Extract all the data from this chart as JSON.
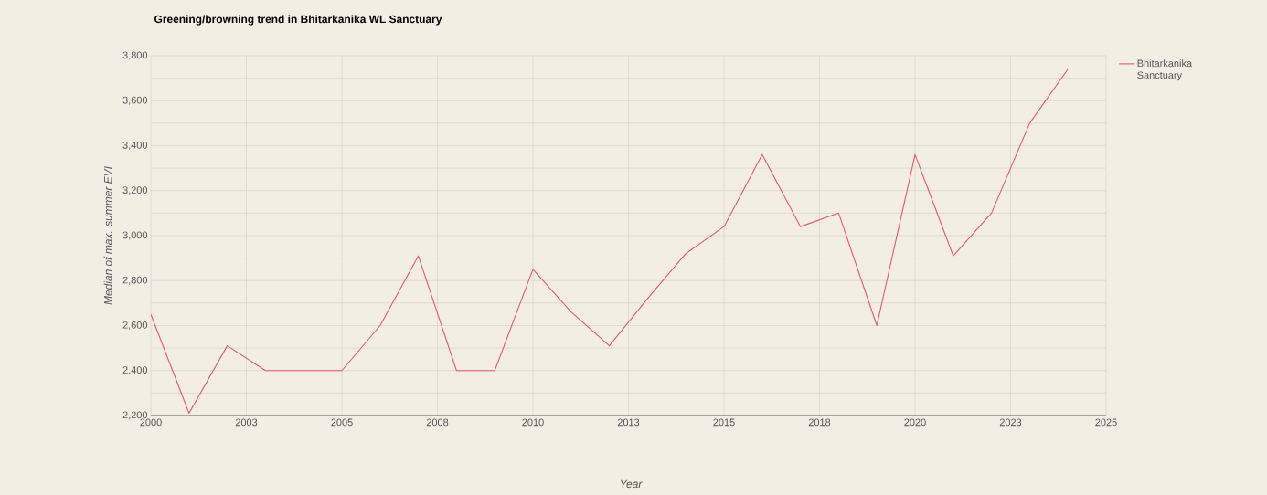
{
  "chart_data": {
    "type": "line",
    "title": "Greening/browning trend in Bhitarkanika WL Sanctuary",
    "xlabel": "Year",
    "ylabel": "Median of max. summer EVI",
    "x": [
      2000,
      2001,
      2002,
      2003,
      2004,
      2005,
      2006,
      2007,
      2008,
      2009,
      2010,
      2011,
      2012,
      2013,
      2014,
      2015,
      2016,
      2017,
      2018,
      2019,
      2020,
      2021,
      2022,
      2023,
      2024
    ],
    "series": [
      {
        "name": "Bhitarkanika Sanctuary",
        "color": "#e05a6e",
        "values": [
          2650,
          2210,
          2510,
          2400,
          2400,
          2400,
          2600,
          2910,
          2400,
          2400,
          2850,
          2660,
          2510,
          2720,
          2920,
          3040,
          3360,
          3040,
          3100,
          2600,
          3360,
          2910,
          3100,
          3500,
          3740
        ]
      }
    ],
    "xlim": [
      2000,
      2025
    ],
    "xticks": [
      2000,
      {
        "value": 2002.5,
        "label": "2003"
      },
      2005,
      {
        "value": 2007.5,
        "label": "2008"
      },
      2010,
      {
        "value": 2012.5,
        "label": "2013"
      },
      2015,
      {
        "value": 2017.5,
        "label": "2018"
      },
      2020,
      {
        "value": 2022.5,
        "label": "2023"
      },
      2025
    ],
    "ylim": [
      2200,
      3800
    ],
    "yticks": [
      {
        "value": 2200,
        "label": "2,200"
      },
      {
        "value": 2300,
        "label": null
      },
      {
        "value": 2400,
        "label": "2,400"
      },
      {
        "value": 2500,
        "label": null
      },
      {
        "value": 2600,
        "label": "2,600"
      },
      {
        "value": 2700,
        "label": null
      },
      {
        "value": 2800,
        "label": "2,800"
      },
      {
        "value": 2900,
        "label": null
      },
      {
        "value": 3000,
        "label": "3,000"
      },
      {
        "value": 3100,
        "label": null
      },
      {
        "value": 3200,
        "label": "3,200"
      },
      {
        "value": 3300,
        "label": null
      },
      {
        "value": 3400,
        "label": "3,400"
      },
      {
        "value": 3500,
        "label": null
      },
      {
        "value": 3600,
        "label": "3,600"
      },
      {
        "value": 3700,
        "label": null
      },
      {
        "value": 3800,
        "label": "3,800"
      }
    ],
    "grid": true,
    "legend": "top right"
  }
}
